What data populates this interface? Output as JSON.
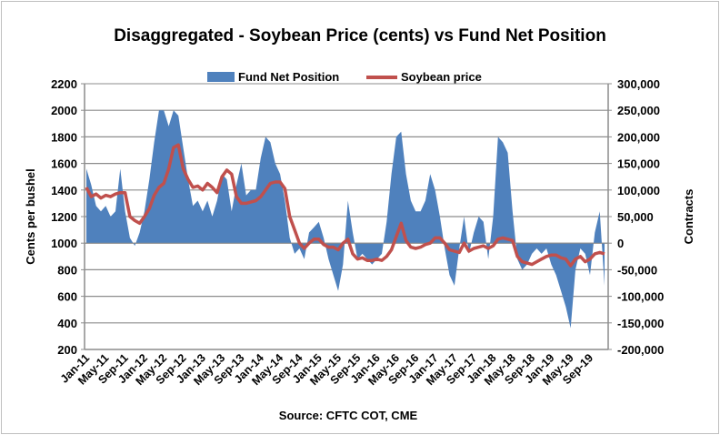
{
  "chart_data": {
    "type": "area+line (dual axis)",
    "title": "Disaggregated - Soybean Price (cents) vs Fund Net Position",
    "source": "Source: CFTC COT, CME",
    "ylabel": "Cents per bushel",
    "y2label": "Contracts",
    "ylim": [
      200,
      2200
    ],
    "y2lim": [
      -200000,
      300000
    ],
    "yticks": [
      "2200",
      "2000",
      "1800",
      "1600",
      "1400",
      "1200",
      "1000",
      "800",
      "600",
      "400",
      "200"
    ],
    "y2ticks": [
      "300,000",
      "250,000",
      "200,000",
      "150,000",
      "100,000",
      "50,000",
      "0",
      "-50,000",
      "-100,000",
      "-150,000",
      "-200,000"
    ],
    "xticks": [
      "Jan-11",
      "May-11",
      "Sep-11",
      "Jan-12",
      "May-12",
      "Sep-12",
      "Jan-13",
      "May-13",
      "Sep-13",
      "Jan-14",
      "May-14",
      "Sep-14",
      "Jan-15",
      "May-15",
      "Sep-15",
      "Jan-16",
      "May-16",
      "Sep-16",
      "Jan-17",
      "May-17",
      "Sep-17",
      "Jan-18",
      "May-18",
      "Sep-18",
      "Jan-19",
      "May-19",
      "Sep-19"
    ],
    "grid": true,
    "legend_position": "top",
    "x_start": "Jan-11",
    "x_interval": "monthly",
    "series": [
      {
        "name": "Fund Net Position",
        "type": "area",
        "axis": "right",
        "color": "#4f81bd",
        "values": [
          140000,
          110000,
          70000,
          60000,
          70000,
          50000,
          60000,
          140000,
          60000,
          10000,
          -5000,
          20000,
          60000,
          120000,
          190000,
          250000,
          250000,
          220000,
          250000,
          240000,
          180000,
          120000,
          70000,
          80000,
          60000,
          80000,
          50000,
          80000,
          130000,
          120000,
          60000,
          110000,
          150000,
          90000,
          100000,
          100000,
          160000,
          200000,
          190000,
          150000,
          130000,
          80000,
          10000,
          -20000,
          -10000,
          -30000,
          20000,
          30000,
          40000,
          10000,
          -30000,
          -60000,
          -90000,
          -40000,
          80000,
          20000,
          -30000,
          -20000,
          -30000,
          -40000,
          -30000,
          -20000,
          40000,
          130000,
          200000,
          210000,
          130000,
          80000,
          60000,
          60000,
          80000,
          130000,
          100000,
          50000,
          -10000,
          -60000,
          -80000,
          -10000,
          50000,
          -20000,
          20000,
          50000,
          40000,
          -30000,
          50000,
          200000,
          190000,
          170000,
          60000,
          -30000,
          -50000,
          -40000,
          -20000,
          -10000,
          -20000,
          -10000,
          -40000,
          -60000,
          -90000,
          -120000,
          -160000,
          -50000,
          -10000,
          -20000,
          -60000,
          20000,
          60000,
          -80000
        ]
      },
      {
        "name": "Soybean price",
        "type": "line",
        "axis": "left",
        "color": "#c0504d",
        "values": [
          1420,
          1350,
          1370,
          1340,
          1360,
          1350,
          1370,
          1380,
          1380,
          1200,
          1170,
          1150,
          1200,
          1260,
          1360,
          1420,
          1450,
          1560,
          1720,
          1740,
          1560,
          1480,
          1420,
          1430,
          1400,
          1450,
          1420,
          1380,
          1500,
          1550,
          1520,
          1350,
          1300,
          1300,
          1310,
          1320,
          1350,
          1400,
          1450,
          1460,
          1460,
          1410,
          1200,
          1100,
          1000,
          960,
          1000,
          1030,
          1030,
          990,
          970,
          970,
          950,
          1000,
          1030,
          920,
          880,
          890,
          870,
          870,
          880,
          870,
          900,
          950,
          1050,
          1150,
          1020,
          970,
          960,
          970,
          990,
          1000,
          1040,
          1040,
          1000,
          950,
          940,
          930,
          1000,
          940,
          960,
          970,
          980,
          960,
          980,
          1030,
          1040,
          1030,
          1020,
          900,
          860,
          850,
          840,
          860,
          880,
          900,
          910,
          910,
          890,
          880,
          830,
          880,
          900,
          860,
          880,
          920,
          930,
          920
        ]
      }
    ]
  }
}
